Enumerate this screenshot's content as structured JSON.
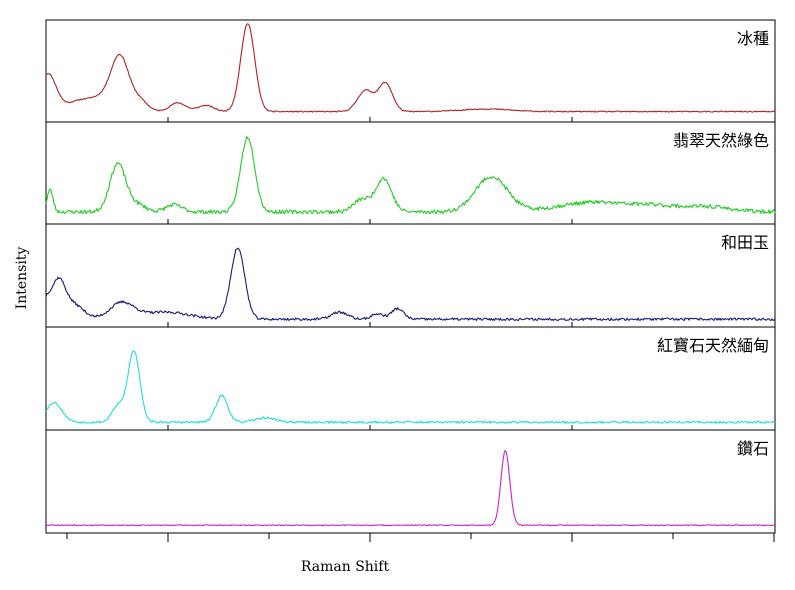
{
  "chart_data": {
    "type": "line",
    "layout": "stacked-panels",
    "xlabel": "Raman Shift",
    "ylabel": "Intensity",
    "x_tick_labels_shown": false,
    "y_tick_labels_shown": false,
    "grid": false,
    "legend": "none",
    "panels": [
      {
        "name": "冰種",
        "color": "#b22222",
        "baseline": 0.05,
        "noise": 0.006,
        "seed": 11,
        "peaks": [
          {
            "x": 1,
            "h": 0.4,
            "w": 4
          },
          {
            "x": 8,
            "h": 0.04,
            "w": 10
          },
          {
            "x": 18,
            "h": 0.1,
            "w": 6
          },
          {
            "x": 28,
            "h": 0.12,
            "w": 5
          },
          {
            "x": 37,
            "h": 0.62,
            "w": 4.5
          },
          {
            "x": 47,
            "h": 0.12,
            "w": 4
          },
          {
            "x": 66,
            "h": 0.1,
            "w": 4
          },
          {
            "x": 80,
            "h": 0.07,
            "w": 4
          },
          {
            "x": 101,
            "h": 1.0,
            "w": 3.5
          },
          {
            "x": 160,
            "h": 0.24,
            "w": 4
          },
          {
            "x": 170,
            "h": 0.32,
            "w": 3.5
          },
          {
            "x": 220,
            "h": 0.03,
            "w": 12
          }
        ]
      },
      {
        "name": "翡翠天然綠色",
        "color": "#22cc22",
        "baseline": 0.07,
        "noise": 0.022,
        "seed": 23,
        "peaks": [
          {
            "x": 2,
            "h": 0.25,
            "w": 1.5
          },
          {
            "x": 36,
            "h": 0.55,
            "w": 4
          },
          {
            "x": 46,
            "h": 0.08,
            "w": 4
          },
          {
            "x": 64,
            "h": 0.08,
            "w": 4
          },
          {
            "x": 101,
            "h": 0.85,
            "w": 3.5
          },
          {
            "x": 158,
            "h": 0.14,
            "w": 4
          },
          {
            "x": 169,
            "h": 0.38,
            "w": 4
          },
          {
            "x": 223,
            "h": 0.4,
            "w": 8
          },
          {
            "x": 275,
            "h": 0.11,
            "w": 18
          },
          {
            "x": 305,
            "h": 0.05,
            "w": 10
          },
          {
            "x": 330,
            "h": 0.06,
            "w": 12
          }
        ]
      },
      {
        "name": "和田玉",
        "color": "#1a1a7a",
        "baseline": 0.02,
        "noise": 0.014,
        "seed": 37,
        "peaks": [
          {
            "x": 0,
            "h": 0.16,
            "w": 2
          },
          {
            "x": 6,
            "h": 0.42,
            "w": 3.5
          },
          {
            "x": 14,
            "h": 0.16,
            "w": 5
          },
          {
            "x": 38,
            "h": 0.18,
            "w": 6
          },
          {
            "x": 60,
            "h": 0.08,
            "w": 12
          },
          {
            "x": 96,
            "h": 0.8,
            "w": 3.5
          },
          {
            "x": 147,
            "h": 0.08,
            "w": 4
          },
          {
            "x": 166,
            "h": 0.06,
            "w": 3
          },
          {
            "x": 176,
            "h": 0.12,
            "w": 3
          }
        ]
      },
      {
        "name": "紅寶石天然緬甸",
        "color": "#22dddd",
        "baseline": 0.02,
        "noise": 0.012,
        "seed": 53,
        "peaks": [
          {
            "x": 4,
            "h": 0.22,
            "w": 4
          },
          {
            "x": 36,
            "h": 0.18,
            "w": 3
          },
          {
            "x": 44,
            "h": 0.8,
            "w": 3
          },
          {
            "x": 88,
            "h": 0.3,
            "w": 3
          },
          {
            "x": 110,
            "h": 0.05,
            "w": 5
          }
        ]
      },
      {
        "name": "鑽石",
        "color": "#cc22cc",
        "baseline": 0.02,
        "noise": 0.005,
        "seed": 71,
        "peaks": [
          {
            "x": 230,
            "h": 0.84,
            "w": 2.2
          }
        ]
      }
    ],
    "xlim": [
      0,
      365
    ],
    "ylim": [
      0,
      1
    ]
  }
}
